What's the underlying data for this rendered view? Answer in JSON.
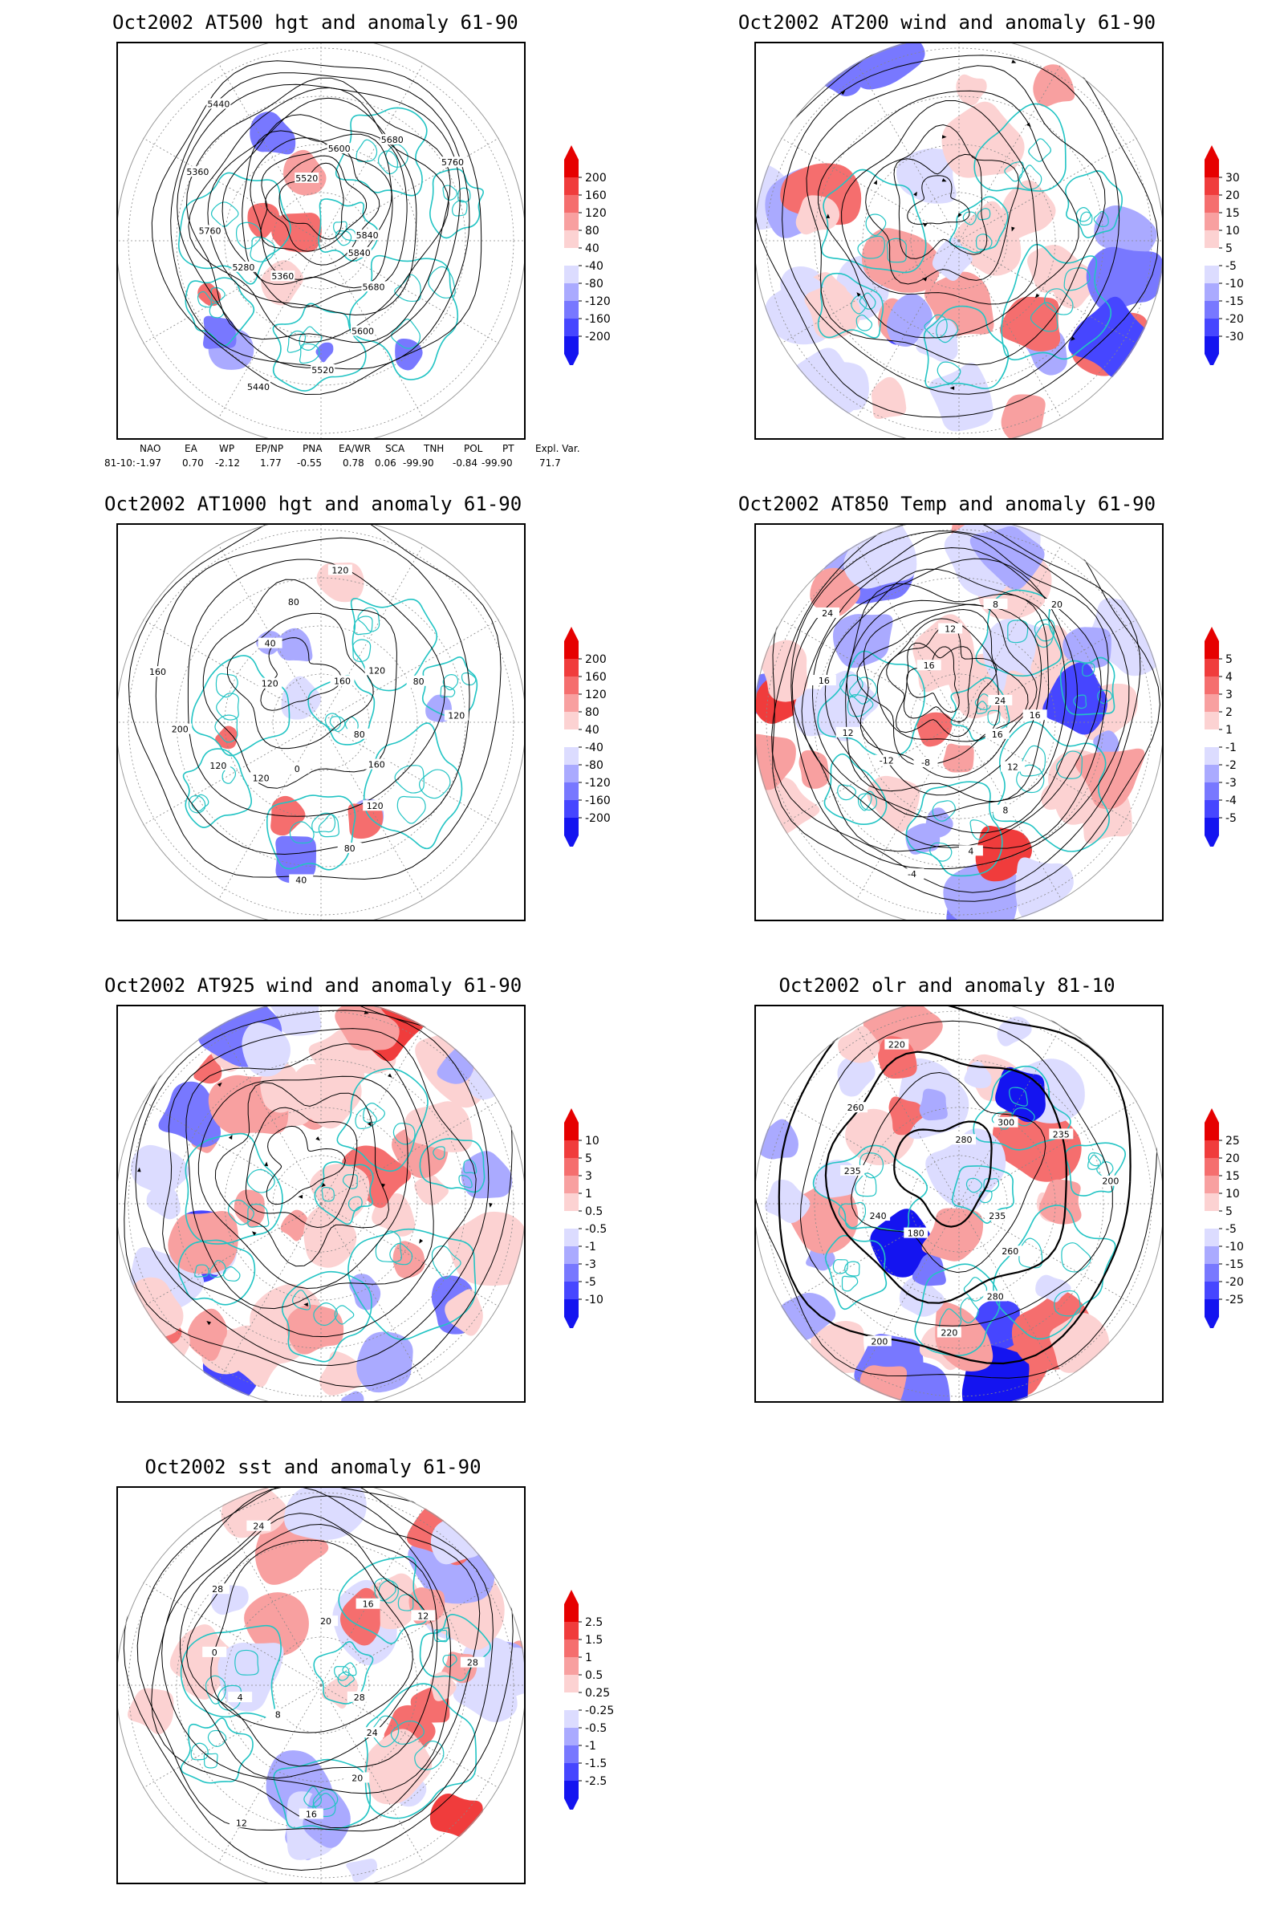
{
  "panels": [
    {
      "id": "p1",
      "title": "Oct2002 AT500 hgt and anomaly 61-90",
      "colorbar": [
        "200",
        "160",
        "120",
        "80",
        "40",
        "-40",
        "-80",
        "-120",
        "-160",
        "-200"
      ],
      "contour_labels": [
        "5840",
        "5680",
        "5600",
        "5520",
        "5440",
        "5360",
        "5280",
        "5760",
        "5360",
        "5440",
        "5520",
        "5600",
        "5680",
        "5760",
        "5840"
      ]
    },
    {
      "id": "p2",
      "title": "Oct2002 AT200 wind and anomaly 61-90",
      "colorbar": [
        "30",
        "20",
        "15",
        "10",
        "5",
        "-5",
        "-10",
        "-15",
        "-20",
        "-30"
      ],
      "contour_labels": []
    },
    {
      "id": "p3",
      "title": "Oct2002 AT1000 hgt and anomaly 61-90",
      "colorbar": [
        "200",
        "160",
        "120",
        "80",
        "40",
        "-40",
        "-80",
        "-120",
        "-160",
        "-200"
      ],
      "contour_labels": [
        "80",
        "160",
        "120",
        "80",
        "40",
        "0",
        "120",
        "120",
        "200",
        "160",
        "120",
        "40",
        "80",
        "120",
        "160",
        "120",
        "80",
        "120"
      ]
    },
    {
      "id": "p4",
      "title": "Oct2002 AT850 Temp and anomaly 61-90",
      "colorbar": [
        "5",
        "4",
        "3",
        "2",
        "1",
        "-1",
        "-2",
        "-3",
        "-4",
        "-5"
      ],
      "contour_labels": [
        "16",
        "12",
        "8",
        "4",
        "-4",
        "-8",
        "-12",
        "12",
        "16",
        "24",
        "16",
        "12",
        "8",
        "20",
        "24",
        "16"
      ]
    },
    {
      "id": "p5",
      "title": "Oct2002 AT925 wind and anomaly 61-90",
      "colorbar": [
        "10",
        "5",
        "3",
        "1",
        "0.5",
        "-0.5",
        "-1",
        "-3",
        "-5",
        "-10"
      ],
      "contour_labels": []
    },
    {
      "id": "p6",
      "title": "Oct2002 olr and anomaly 81-10",
      "colorbar": [
        "25",
        "20",
        "15",
        "10",
        "5",
        "-5",
        "-10",
        "-15",
        "-20",
        "-25"
      ],
      "contour_labels": [
        "235",
        "260",
        "280",
        "220",
        "200",
        "180",
        "240",
        "235",
        "260",
        "220",
        "280",
        "300",
        "235",
        "200"
      ]
    },
    {
      "id": "p7",
      "title": "Oct2002 sst and anomaly 61-90",
      "colorbar": [
        "2.5",
        "1.5",
        "1",
        "0.5",
        "0.25",
        "-0.25",
        "-0.5",
        "-1",
        "-1.5",
        "-2.5"
      ],
      "contour_labels": [
        "28",
        "24",
        "20",
        "16",
        "12",
        "8",
        "4",
        "0",
        "28",
        "24",
        "20",
        "16",
        "12",
        "28"
      ]
    }
  ],
  "indices": {
    "headers": [
      "NAO",
      "EA",
      "WP",
      "EP/NP",
      "PNA",
      "EA/WR",
      "SCA",
      "TNH",
      "POL",
      "PT",
      "Expl. Var."
    ],
    "row_label": "81-10:",
    "values": [
      "-1.97",
      "0.70",
      "-2.12",
      "1.77",
      "-0.55",
      "0.78",
      "0.06",
      "-99.90",
      "-0.84",
      "-99.90",
      "71.7"
    ]
  },
  "colors": {
    "coast": "#22c4c4",
    "red_scale": [
      "#e60000",
      "#f03c3c",
      "#f56e6e",
      "#f8a0a0",
      "#fcd2d2"
    ],
    "blue_scale": [
      "#dcdcff",
      "#aaaaff",
      "#7878ff",
      "#4646ff",
      "#1414f0"
    ]
  }
}
